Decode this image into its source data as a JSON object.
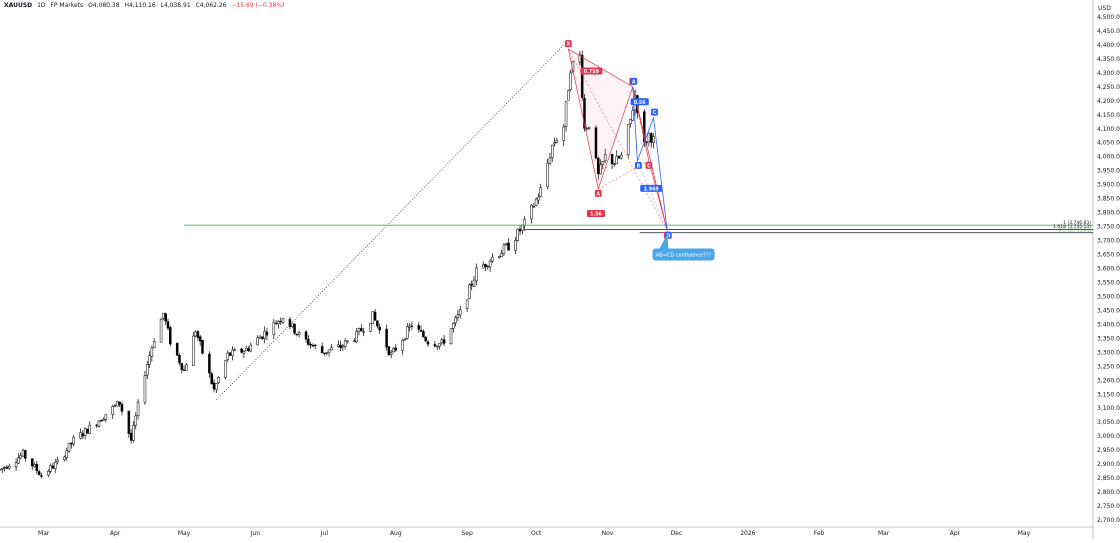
{
  "header": {
    "symbol": "XAUUSD",
    "interval": "1D",
    "source": "FP Markets",
    "open": "O4,080.38",
    "high": "H4,110.16",
    "low": "L4,038.91",
    "close": "C4,062.26",
    "change": "−15.69 (−0.38%)"
  },
  "currency_label": "USD",
  "colors": {
    "up_candle": "#ffffff",
    "down_candle": "#000000",
    "pattern_red": "#e0364e",
    "pattern_blue": "#2962ff",
    "support_green": "#4caf50",
    "callout_blue": "#4aa8e8"
  },
  "chart_data": {
    "type": "candlestick",
    "y_axis": {
      "label": "USD",
      "range": [
        2675,
        4525
      ],
      "ticks": [
        "4,500.00",
        "4,450.00",
        "4,400.00",
        "4,350.00",
        "4,300.00",
        "4,250.00",
        "4,200.00",
        "4,150.00",
        "4,100.00",
        "4,050.00",
        "4,000.00",
        "3,950.00",
        "3,900.00",
        "3,850.00",
        "3,800.00",
        "3,750.00",
        "3,700.00",
        "3,650.00",
        "3,600.00",
        "3,550.00",
        "3,500.00",
        "3,450.00",
        "3,400.00",
        "3,350.00",
        "3,300.00",
        "3,250.00",
        "3,200.00",
        "3,150.00",
        "3,100.00",
        "3,050.00",
        "3,000.00",
        "2,950.00",
        "2,900.00",
        "2,850.00",
        "2,800.00",
        "2,750.00",
        "2,700.00"
      ]
    },
    "x_axis": {
      "range": [
        "2025-02-10",
        "2026-05-31"
      ],
      "ticks": [
        {
          "date": "2025-03-01",
          "label": "Mar"
        },
        {
          "date": "2025-04-01",
          "label": "Apr"
        },
        {
          "date": "2025-05-01",
          "label": "May"
        },
        {
          "date": "2025-06-01",
          "label": "Jun"
        },
        {
          "date": "2025-07-01",
          "label": "Jul"
        },
        {
          "date": "2025-08-01",
          "label": "Aug"
        },
        {
          "date": "2025-09-01",
          "label": "Sep"
        },
        {
          "date": "2025-10-01",
          "label": "Oct"
        },
        {
          "date": "2025-11-01",
          "label": "Nov"
        },
        {
          "date": "2025-12-01",
          "label": "Dec"
        },
        {
          "date": "2026-01-01",
          "label": "2026"
        },
        {
          "date": "2026-02-01",
          "label": "Feb"
        },
        {
          "date": "2026-03-01",
          "label": "Mar"
        },
        {
          "date": "2026-04-01",
          "label": "Apr"
        },
        {
          "date": "2026-05-01",
          "label": "May"
        }
      ]
    },
    "price_path": [
      [
        "2025-02-10",
        2880
      ],
      [
        "2025-02-20",
        2935
      ],
      [
        "2025-02-28",
        2860
      ],
      [
        "2025-03-07",
        2905
      ],
      [
        "2025-03-14",
        2985
      ],
      [
        "2025-03-21",
        3030
      ],
      [
        "2025-03-28",
        3080
      ],
      [
        "2025-04-03",
        3120
      ],
      [
        "2025-04-08",
        2985
      ],
      [
        "2025-04-14",
        3230
      ],
      [
        "2025-04-18",
        3350
      ],
      [
        "2025-04-22",
        3440
      ],
      [
        "2025-04-25",
        3340
      ],
      [
        "2025-05-01",
        3235
      ],
      [
        "2025-05-06",
        3380
      ],
      [
        "2025-05-14",
        3165
      ],
      [
        "2025-05-20",
        3290
      ],
      [
        "2025-05-28",
        3310
      ],
      [
        "2025-06-05",
        3370
      ],
      [
        "2025-06-13",
        3430
      ],
      [
        "2025-06-20",
        3360
      ],
      [
        "2025-06-30",
        3300
      ],
      [
        "2025-07-08",
        3320
      ],
      [
        "2025-07-15",
        3360
      ],
      [
        "2025-07-22",
        3430
      ],
      [
        "2025-07-30",
        3290
      ],
      [
        "2025-08-08",
        3400
      ],
      [
        "2025-08-15",
        3340
      ],
      [
        "2025-08-21",
        3330
      ],
      [
        "2025-08-29",
        3440
      ],
      [
        "2025-09-05",
        3590
      ],
      [
        "2025-09-12",
        3640
      ],
      [
        "2025-09-19",
        3680
      ],
      [
        "2025-09-26",
        3760
      ],
      [
        "2025-10-03",
        3880
      ],
      [
        "2025-10-08",
        4040
      ],
      [
        "2025-10-13",
        4110
      ],
      [
        "2025-10-16",
        4320
      ],
      [
        "2025-10-20",
        4360
      ],
      [
        "2025-10-22",
        4100
      ],
      [
        "2025-10-24",
        4120
      ],
      [
        "2025-10-28",
        3930
      ],
      [
        "2025-10-31",
        4000
      ],
      [
        "2025-11-04",
        3980
      ],
      [
        "2025-11-07",
        4000
      ],
      [
        "2025-11-11",
        4130
      ],
      [
        "2025-11-13",
        4220
      ],
      [
        "2025-11-17",
        4040
      ],
      [
        "2025-11-19",
        4080
      ],
      [
        "2025-11-21",
        4060
      ]
    ],
    "drawings": {
      "dotted_trendline": {
        "from": [
          "2025-05-15",
          3130
        ],
        "to": [
          "2025-10-13",
          4400
        ]
      },
      "harmonic_pattern": {
        "points": [
          {
            "label": "X",
            "date": "2025-10-15",
            "price": 4385
          },
          {
            "label": "A",
            "date": "2025-10-28",
            "price": 3885
          },
          {
            "label": "B",
            "date": "2025-11-12",
            "price": 4250
          },
          {
            "label": "C",
            "date": "2025-11-19",
            "price": 3985
          },
          {
            "label": "D",
            "date": "2025-11-27",
            "price": 3735
          }
        ],
        "ratios": [
          {
            "text": "0.759",
            "date": "2025-10-25",
            "price": 4305
          },
          {
            "text": "1.56",
            "date": "2025-10-27",
            "price": 3795
          }
        ]
      },
      "abcd_pattern": {
        "points": [
          {
            "label": "A",
            "date": "2025-11-12",
            "price": 4250
          },
          {
            "label": "B",
            "date": "2025-11-14",
            "price": 3985
          },
          {
            "label": "C",
            "date": "2025-11-21",
            "price": 4140
          },
          {
            "label": "D",
            "date": "2025-11-27",
            "price": 3735
          }
        ],
        "ratios": [
          {
            "text": "0.56",
            "date": "2025-11-15",
            "price": 4195
          },
          {
            "text": "2.969",
            "date": "2025-11-20",
            "price": 3885
          }
        ]
      },
      "support_lines": [
        {
          "price": 3755,
          "color": "#4caf50",
          "from": "2025-05-01"
        },
        {
          "price": 3740,
          "color": "#131722",
          "from": "2025-09-26"
        },
        {
          "price": 3728,
          "color": "#131722",
          "from": "2025-11-15"
        }
      ],
      "level_labels": [
        "1 (3,746.83)",
        "1.618 (3,735.13)",
        "2.5 (3,736.04)"
      ],
      "callout": {
        "text": "AB=CD confluence???",
        "date": "2025-12-01",
        "price": 3650
      }
    }
  }
}
